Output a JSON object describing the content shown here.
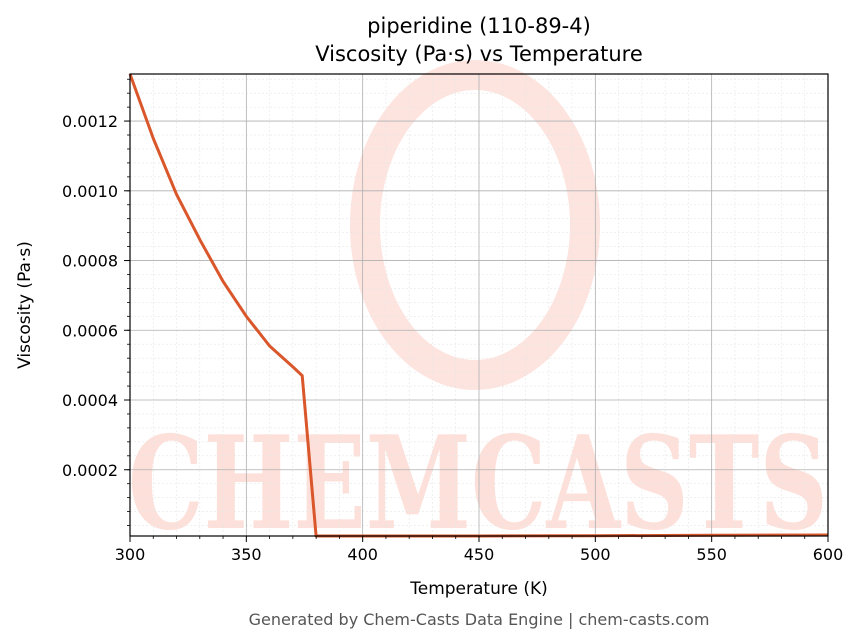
{
  "chart_data": {
    "type": "line",
    "title": "piperidine (110-89-4)",
    "subtitle": "Viscosity (Pa·s) vs Temperature",
    "xlabel": "Temperature (K)",
    "ylabel": "Viscosity (Pa·s)",
    "xlim": [
      300,
      600
    ],
    "ylim": [
      1e-05,
      0.001335
    ],
    "x_ticks": [
      300,
      350,
      400,
      450,
      500,
      550,
      600
    ],
    "x_tick_labels": [
      "300",
      "350",
      "400",
      "450",
      "500",
      "550",
      "600"
    ],
    "y_ticks": [
      0.0002,
      0.0004,
      0.0006,
      0.0008,
      0.001,
      0.0012
    ],
    "y_tick_labels": [
      "0.0002",
      "0.0004",
      "0.0006",
      "0.0008",
      "0.0010",
      "0.0012"
    ],
    "grid": true,
    "minor_grid": true,
    "line_color": "#d9572b",
    "series": [
      {
        "x": [
          300,
          310,
          320,
          330,
          340,
          350,
          360,
          370,
          374,
          380,
          400,
          450,
          500,
          550,
          600
        ],
        "values": [
          0.001335,
          0.00115,
          0.00099,
          0.00086,
          0.00074,
          0.00064,
          0.000555,
          0.000495,
          0.00047,
          1e-05,
          1e-05,
          1e-05,
          1.1e-05,
          1.2e-05,
          1.3e-05
        ]
      }
    ]
  },
  "watermark": {
    "text": "CHEMCASTS",
    "color": "#fde0da"
  },
  "footer": {
    "text": "Generated by Chem-Casts Data Engine | chem-casts.com"
  }
}
